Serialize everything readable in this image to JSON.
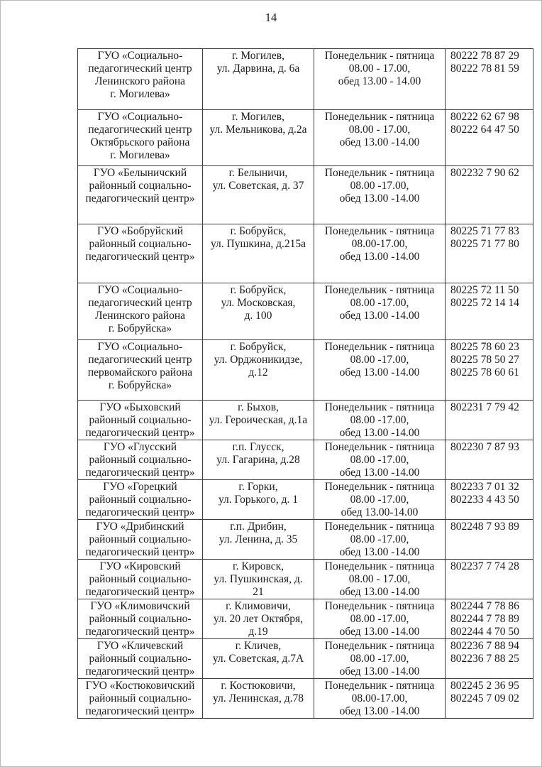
{
  "page": {
    "number": "14"
  },
  "colors": {
    "text": "#1b1b1b",
    "table_border": "#3d3d3d",
    "background": "#ffffff"
  },
  "table": {
    "columns": [
      "name",
      "address",
      "schedule",
      "phones"
    ],
    "rows": [
      {
        "name": [
          "ГУО «Социально-",
          "педагогический центр",
          "Ленинского района",
          "г. Могилева»"
        ],
        "address": [
          "г. Могилев,",
          "ул. Дарвина, д. 6а"
        ],
        "schedule": [
          "Понедельник - пятница",
          "08.00 - 17.00,",
          "обед 13.00 - 14.00"
        ],
        "phones": [
          "80222 78 87 29",
          "80222 78 81 59"
        ]
      },
      {
        "name": [
          "ГУО «Социально-",
          "педагогический центр",
          "Октябрьского района",
          "г. Могилева»"
        ],
        "address": [
          "г. Могилев,",
          "ул. Мельникова, д.2а"
        ],
        "schedule": [
          "Понедельник - пятница",
          "08.00 - 17.00,",
          "обед 13.00 -14.00"
        ],
        "phones": [
          "80222 62 67 98",
          "80222 64 47 50"
        ]
      },
      {
        "name": [
          "ГУО «Белыничский",
          "районный социально-",
          "педагогический центр»"
        ],
        "address": [
          "г. Белыничи,",
          "ул. Советская, д. 37"
        ],
        "schedule": [
          "Понедельник - пятница",
          "08.00 -17.00,",
          "обед 13.00 -14.00"
        ],
        "phones": [
          "802232 7 90 62"
        ]
      },
      {
        "name": [
          "ГУО «Бобруйский",
          "районный социально-",
          "педагогический центр»"
        ],
        "address": [
          "г. Бобруйск,",
          "ул. Пушкина, д.215а"
        ],
        "schedule": [
          "Понедельник - пятница",
          "08.00-17.00,",
          "обед 13.00 -14.00"
        ],
        "phones": [
          "80225 71 77 83",
          "80225 71 77 80"
        ]
      },
      {
        "name": [
          "ГУО «Социально-",
          "педагогический центр",
          "Ленинского района",
          "г. Бобруйска»"
        ],
        "address": [
          "г. Бобруйск,",
          "ул. Московская,",
          "д. 100"
        ],
        "schedule": [
          "Понедельник - пятница",
          "08.00 -17.00,",
          "обед 13.00 -14.00"
        ],
        "phones": [
          "80225 72 11 50",
          "80225 72 14 14"
        ]
      },
      {
        "name": [
          "ГУО «Социально-",
          "педагогический центр",
          "первомайского района",
          "г. Бобруйска»"
        ],
        "address": [
          "г. Бобруйск,",
          "ул. Орджоникидзе,",
          "д.12"
        ],
        "schedule": [
          "Понедельник - пятница",
          "08.00 -17.00,",
          "обед 13.00 -14.00"
        ],
        "phones": [
          "80225 78 60 23",
          "80225 78 50 27",
          "80225 78 60 61"
        ]
      },
      {
        "name": [
          "ГУО «Быховский",
          "районный социально-",
          "педагогический центр»"
        ],
        "address": [
          "г. Быхов,",
          "ул. Героическая, д.1а"
        ],
        "schedule": [
          "Понедельник - пятница",
          "08.00 -17.00,",
          "обед 13.00 -14.00"
        ],
        "phones": [
          "802231 7 79 42"
        ]
      },
      {
        "name": [
          "ГУО «Глусский",
          "районный социально-",
          "педагогический центр»"
        ],
        "address": [
          "г.п. Глусск,",
          "ул. Гагарина, д.28"
        ],
        "schedule": [
          "Понедельник - пятница",
          "08.00 -17.00,",
          "обед 13.00 -14.00"
        ],
        "phones": [
          "802230 7 87 93"
        ]
      },
      {
        "name": [
          "ГУО «Горецкий",
          "районный социально-",
          "педагогический центр»"
        ],
        "address": [
          "г. Горки,",
          "ул. Горького, д. 1"
        ],
        "schedule": [
          "Понедельник - пятница",
          "08.00 -17.00,",
          "обед 13.00-14.00"
        ],
        "phones": [
          "802233 7 01 32",
          "802233 4 43 50"
        ]
      },
      {
        "name": [
          "ГУО «Дрибинский",
          "районный социально-",
          "педагогический центр»"
        ],
        "address": [
          "г.п. Дрибин,",
          "ул. Ленина, д. 35"
        ],
        "schedule": [
          "Понедельник - пятница",
          "08.00 -17.00,",
          "обед 13.00 -14.00"
        ],
        "phones": [
          "802248 7 93 89"
        ]
      },
      {
        "name": [
          "ГУО «Кировский",
          "районный социально-",
          "педагогический центр»"
        ],
        "address": [
          "г. Кировск,",
          "ул. Пушкинская, д.",
          "21"
        ],
        "schedule": [
          "Понедельник - пятница",
          "08.00 - 17.00,",
          "обед 13.00 -14.00"
        ],
        "phones": [
          "802237 7 74 28"
        ]
      },
      {
        "name": [
          "ГУО «Климовичский",
          "районный социально-",
          "педагогический центр»"
        ],
        "address": [
          "г. Климовичи,",
          "ул. 20 лет Октября,",
          "д.19"
        ],
        "schedule": [
          "Понедельник - пятница",
          "08.00 -17.00,",
          "обед 13.00 -14.00"
        ],
        "phones": [
          "802244 7 78 86",
          "802244 7 78 89",
          "802244 4 70 50"
        ]
      },
      {
        "name": [
          "ГУО «Кличевский",
          "районный социально-",
          "педагогический центр»"
        ],
        "address": [
          "г. Кличев,",
          "ул. Советская, д.7А"
        ],
        "schedule": [
          "Понедельник - пятница",
          "08.00 -17.00,",
          "обед 13.00 -14.00"
        ],
        "phones": [
          "802236 7 88 94",
          "802236 7 88 25"
        ]
      },
      {
        "name": [
          "ГУО «Костюковичский",
          "районный социально-",
          "педагогический центр»"
        ],
        "address": [
          "г. Костюковичи,",
          "ул. Ленинская, д.78"
        ],
        "schedule": [
          "Понедельник - пятница",
          "08.00-17.00,",
          "обед 13.00 -14.00"
        ],
        "phones": [
          "802245 2 36 95",
          "802245 7 09 02"
        ]
      }
    ]
  }
}
